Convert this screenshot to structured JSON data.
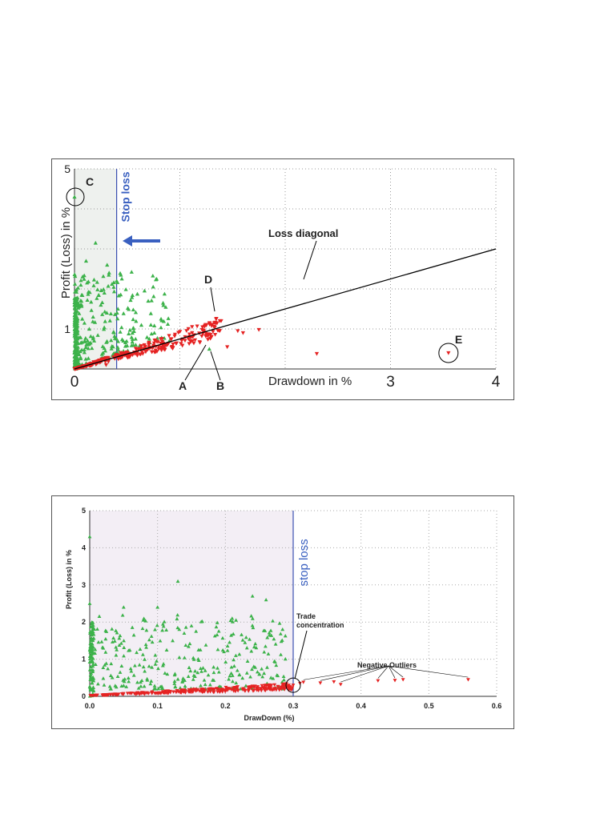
{
  "chart_data": [
    {
      "type": "scatter",
      "xlabel": "Drawdown in %",
      "ylabel": "Profit (Loss) in %",
      "xlim": [
        0,
        4
      ],
      "ylim": [
        0,
        5
      ],
      "xticks": [
        "0",
        "1",
        "2",
        "3",
        "4"
      ],
      "xticks_shown": [
        "0",
        "",
        "",
        "3",
        "4"
      ],
      "yticks": [
        "0",
        "1",
        "2",
        "3",
        "4",
        "5"
      ],
      "yticks_shown": [
        "",
        "1",
        "",
        "",
        "",
        "5"
      ],
      "grid": true,
      "stop_loss": {
        "x": 0.4,
        "label": "Stop loss"
      },
      "loss_diagonal": {
        "from": [
          0,
          0
        ],
        "to": [
          4,
          4
        ],
        "label": "Loss diagonal"
      },
      "annotations": [
        {
          "label": "C",
          "x": 0.0,
          "y": 4.3
        },
        {
          "label": "D",
          "x": 1.3,
          "y": 1.4
        },
        {
          "label": "A",
          "x": 1.3,
          "y": 0.65
        },
        {
          "label": "B",
          "x": 1.3,
          "y": 0.5
        },
        {
          "label": "E",
          "x": 3.55,
          "y": 0.4
        }
      ],
      "series": [
        {
          "color": "#3cb24a",
          "marker": "triangle-up",
          "points": [
            [
              0.0,
              4.3
            ],
            [
              0.03,
              0.08
            ],
            [
              0.06,
              2.1
            ],
            [
              0.11,
              2.7
            ],
            [
              0.14,
              1.0
            ],
            [
              0.2,
              3.15
            ],
            [
              0.25,
              1.6
            ],
            [
              0.31,
              2.6
            ],
            [
              0.4,
              2.2
            ],
            [
              0.44,
              2.35
            ],
            [
              0.7,
              1.7
            ],
            [
              0.78,
              2.25
            ],
            [
              1.28,
              0.5
            ],
            [
              0.55,
              0.9
            ],
            [
              0.9,
              0.7
            ]
          ],
          "count": 700
        },
        {
          "color": "#e52222",
          "marker": "triangle-down",
          "points": [
            [
              0.3,
              0.1
            ],
            [
              0.5,
              0.3
            ],
            [
              0.8,
              0.5
            ],
            [
              1.05,
              0.8
            ],
            [
              1.25,
              1.1
            ],
            [
              1.38,
              1.2
            ],
            [
              1.55,
              0.95
            ],
            [
              1.6,
              0.9
            ],
            [
              1.75,
              0.98
            ],
            [
              1.45,
              0.55
            ],
            [
              2.3,
              0.38
            ],
            [
              3.55,
              0.4
            ]
          ],
          "count": 400
        }
      ]
    },
    {
      "type": "scatter",
      "xlabel": "DrawDown (%)",
      "ylabel": "Profit (Loss) in %",
      "xlim": [
        0,
        0.6
      ],
      "ylim": [
        0,
        5
      ],
      "xticks": [
        "0.0",
        "0.1",
        "0.2",
        "0.3",
        "0.4",
        "0.5",
        "0.6"
      ],
      "yticks": [
        "0",
        "1",
        "2",
        "3",
        "4",
        "5"
      ],
      "grid": true,
      "stop_loss": {
        "x": 0.3,
        "label": "stop  loss"
      },
      "annotations": [
        {
          "label": "Trade concentration",
          "x": 0.3,
          "y": 0.3
        },
        {
          "label": "Negative Outliers",
          "x": 0.45,
          "y": 0.8
        }
      ],
      "series": [
        {
          "color": "#3cb24a",
          "marker": "triangle-up",
          "points": [
            [
              0.0,
              4.3
            ],
            [
              0.0,
              2.5
            ],
            [
              0.02,
              1.3
            ],
            [
              0.05,
              2.4
            ],
            [
              0.1,
              2.4
            ],
            [
              0.13,
              3.1
            ],
            [
              0.21,
              2.1
            ],
            [
              0.24,
              2.7
            ],
            [
              0.26,
              2.6
            ],
            [
              0.15,
              1.9
            ]
          ],
          "count": 500
        },
        {
          "color": "#e52222",
          "marker": "triangle-down",
          "points": [
            [
              0.3,
              0.3
            ],
            [
              0.31,
              0.35
            ],
            [
              0.315,
              0.38
            ],
            [
              0.34,
              0.36
            ],
            [
              0.36,
              0.39
            ],
            [
              0.37,
              0.32
            ],
            [
              0.425,
              0.42
            ],
            [
              0.45,
              0.43
            ],
            [
              0.462,
              0.45
            ],
            [
              0.558,
              0.45
            ]
          ],
          "count": 400
        }
      ]
    }
  ]
}
